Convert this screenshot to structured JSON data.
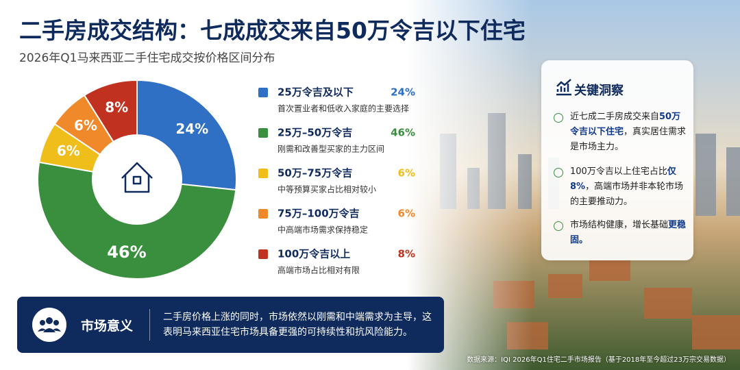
{
  "title": "二手房成交结构：七成成交来自50万令吉以下住宅",
  "subtitle": "2026年Q1马来西亚二手住宅成交按价格区间分布",
  "chart_data": {
    "type": "pie",
    "categories": [
      "25万令吉及以下",
      "25万–50万令吉",
      "50万–75万令吉",
      "75万–100万令吉",
      "100万令吉以上"
    ],
    "descriptions": [
      "首次置业者和低收入家庭的主要选择",
      "刚需和改善型买家的主力区间",
      "中等预算买家占比相对较小",
      "中高端市场需求保持稳定",
      "高端市场占比相对有限"
    ],
    "values": [
      24,
      46,
      6,
      6,
      8
    ],
    "value_labels": [
      "24%",
      "46%",
      "6%",
      "6%",
      "8%"
    ],
    "colors": [
      "#2f6fc4",
      "#3a8f3e",
      "#f0be1a",
      "#f0892a",
      "#c0321f"
    ]
  },
  "insights": {
    "title": "关键洞察",
    "items": [
      [
        "近七成二手房成交来自",
        "50万令吉以下住宅",
        "，真实居住需求是市场主力。"
      ],
      [
        "100万令吉以上住宅占比",
        "仅8%",
        "，高端市场并非本轮市场的主要推动力。"
      ],
      [
        "市场结构健康，增长基础",
        "更稳固。"
      ]
    ]
  },
  "significance": {
    "title": "市场意义",
    "text": "二手房价格上涨的同时，市场依然以刚需和中端需求为主导，这表明马来西亚住宅市场具备更强的可持续性和抗风险能力。"
  },
  "source": "数据来源：IQI 2026年Q1住宅二手市场报告（基于2018年至今超过23万宗交易数据）"
}
